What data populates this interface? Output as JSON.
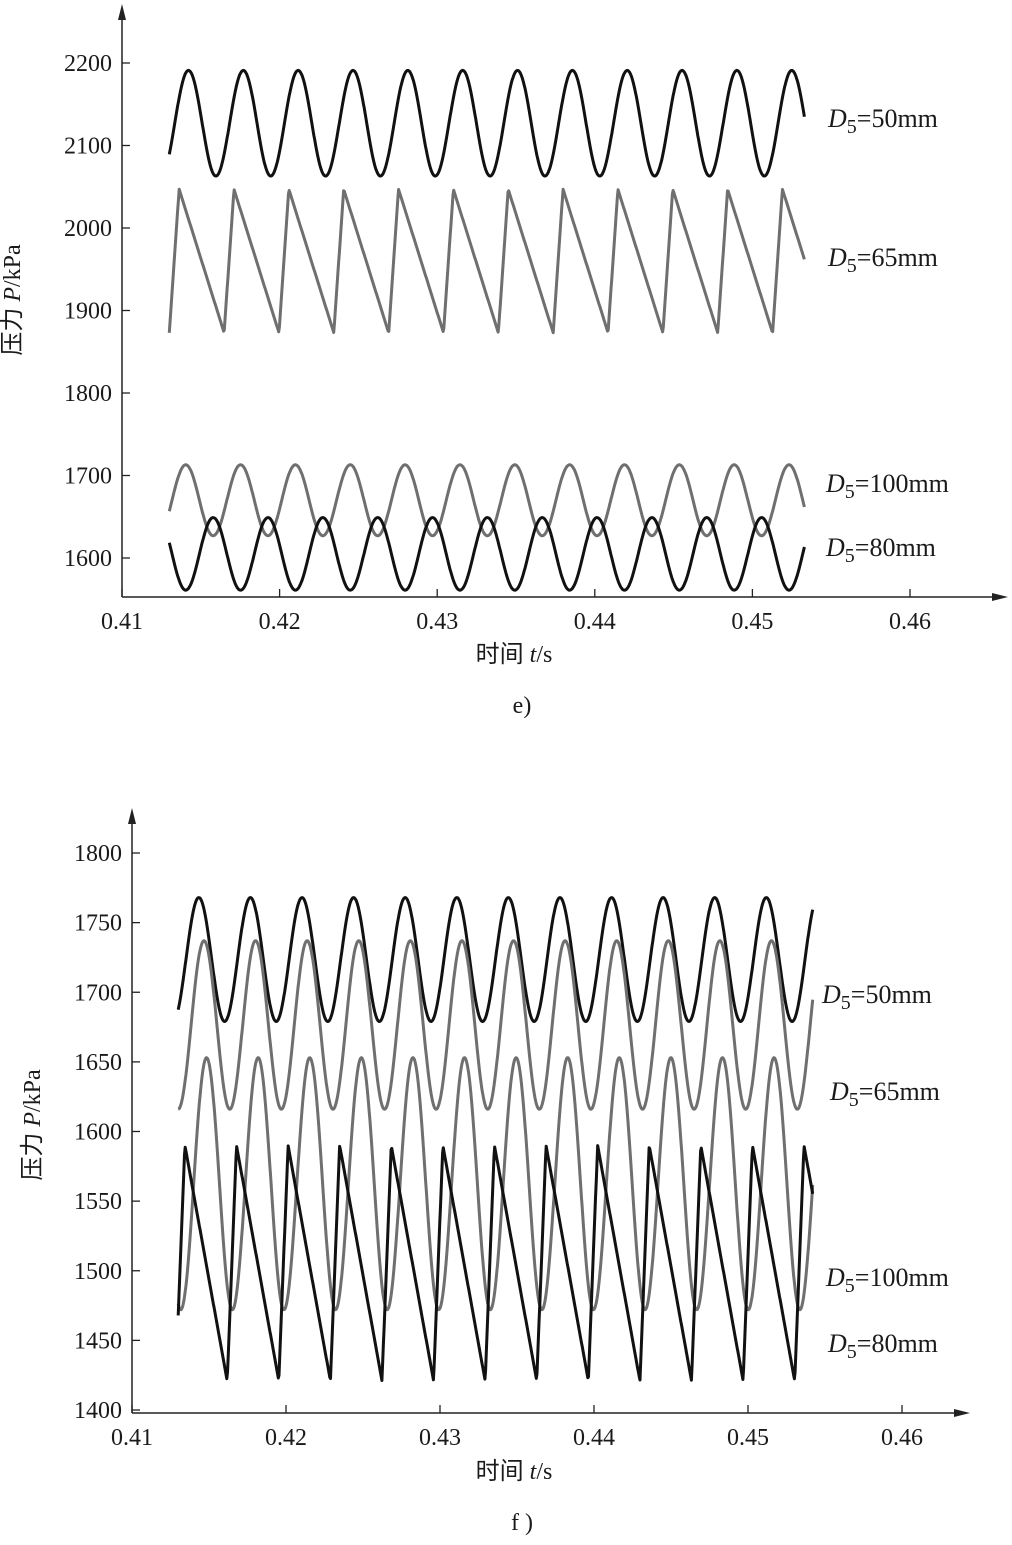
{
  "chart_data": [
    {
      "type": "line",
      "panel_label": "e)",
      "xlabel_prefix": "时间 ",
      "xlabel_var": "t",
      "xlabel_unit": "/s",
      "ylabel_prefix": "压力 ",
      "ylabel_var": "P",
      "ylabel_unit": "/kPa",
      "xlim": [
        0.41,
        0.46
      ],
      "xticks": [
        "0.41",
        "0.42",
        "0.43",
        "0.44",
        "0.45",
        "0.46"
      ],
      "xtick_values": [
        0.41,
        0.42,
        0.43,
        0.44,
        0.45,
        0.46
      ],
      "yticks": [
        "1600",
        "1700",
        "1800",
        "1900",
        "2000",
        "2100",
        "2200"
      ],
      "ytick_values": [
        1600,
        1700,
        1800,
        1900,
        2000,
        2100,
        2200
      ],
      "grid": false,
      "legend": "direct labels at right end of curves",
      "series": [
        {
          "name": "D5=50mm",
          "label_main": "D",
          "label_sub": "5",
          "label_rest": "=50mm",
          "color": "#111111",
          "x_start": 0.413,
          "x_end": 0.4533,
          "period": 0.00348,
          "min": 2063,
          "max": 2191,
          "phase": 0.9,
          "shape": "sine"
        },
        {
          "name": "D5=65mm",
          "label_main": "D",
          "label_sub": "5",
          "label_rest": "=65mm",
          "color": "#6f6f6f",
          "x_start": 0.413,
          "x_end": 0.4533,
          "period": 0.00348,
          "min": 1873,
          "max": 2047,
          "phase": 0.0,
          "shape": "sawtooth"
        },
        {
          "name": "D5=100mm",
          "label_main": "D",
          "label_sub": "5",
          "label_rest": "=100mm",
          "color": "#6f6f6f",
          "x_start": 0.413,
          "x_end": 0.4533,
          "period": 0.00348,
          "min": 1627,
          "max": 1713,
          "phase": 0.95,
          "shape": "sine"
        },
        {
          "name": "D5=80mm",
          "label_main": "D",
          "label_sub": "5",
          "label_rest": "=80mm",
          "color": "#111111",
          "x_start": 0.413,
          "x_end": 0.4533,
          "period": 0.00348,
          "min": 1561,
          "max": 1649,
          "phase": 0.45,
          "shape": "sine"
        }
      ]
    },
    {
      "type": "line",
      "panel_label": "f )",
      "xlabel_prefix": "时间 ",
      "xlabel_var": "t",
      "xlabel_unit": "/s",
      "ylabel_prefix": "压力 ",
      "ylabel_var": "P",
      "ylabel_unit": "/kPa",
      "xlim": [
        0.41,
        0.46
      ],
      "xticks": [
        "0.41",
        "0.42",
        "0.43",
        "0.44",
        "0.45",
        "0.46"
      ],
      "xtick_values": [
        0.41,
        0.42,
        0.43,
        0.44,
        0.45,
        0.46
      ],
      "yticks": [
        "1400",
        "1450",
        "1500",
        "1550",
        "1600",
        "1650",
        "1700",
        "1750",
        "1800"
      ],
      "ytick_values": [
        1400,
        1450,
        1500,
        1550,
        1600,
        1650,
        1700,
        1750,
        1800
      ],
      "grid": false,
      "legend": "direct labels at right end of curves",
      "series": [
        {
          "name": "D5=50mm",
          "label_main": "D",
          "label_sub": "5",
          "label_rest": "=50mm",
          "color": "#111111",
          "x_start": 0.413,
          "x_end": 0.4542,
          "period": 0.00335,
          "min": 1679,
          "max": 1768,
          "phase": 0.85,
          "shape": "sine"
        },
        {
          "name": "D5=65mm",
          "label_main": "D",
          "label_sub": "5",
          "label_rest": "=65mm",
          "color": "#6f6f6f",
          "x_start": 0.413,
          "x_end": 0.4542,
          "period": 0.00335,
          "min": 1616,
          "max": 1737,
          "phase": 0.75,
          "shape": "sine"
        },
        {
          "name": "D5=100mm",
          "label_main": "D",
          "label_sub": "5",
          "label_rest": "=100mm",
          "color": "#6f6f6f",
          "x_start": 0.413,
          "x_end": 0.4542,
          "period": 0.00335,
          "min": 1472,
          "max": 1653,
          "phase": 0.7,
          "shape": "sine"
        },
        {
          "name": "D5=80mm",
          "label_main": "D",
          "label_sub": "5",
          "label_rest": "=80mm",
          "color": "#111111",
          "x_start": 0.413,
          "x_end": 0.4542,
          "period": 0.00335,
          "min": 1421,
          "max": 1590,
          "phase": 0.05,
          "shape": "sawtooth"
        }
      ]
    }
  ]
}
